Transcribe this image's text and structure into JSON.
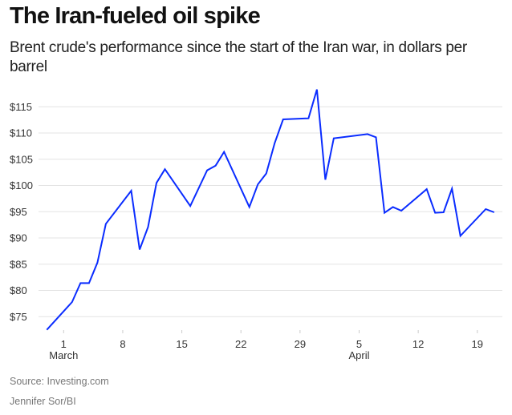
{
  "title": "The Iran-fueled oil spike",
  "subtitle": "Brent crude's performance since the start of the Iran war, in dollars per barrel",
  "source": "Source: Investing.com",
  "credit": "Jennifer Sor/BI",
  "line_color": "#0a2cff",
  "chart_data": {
    "type": "line",
    "title": "The Iran-fueled oil spike",
    "xlabel": "",
    "ylabel": "Dollars per barrel",
    "ylim": [
      72,
      119
    ],
    "yticks": [
      75,
      80,
      85,
      90,
      95,
      100,
      105,
      110,
      115
    ],
    "ytick_labels": [
      "$75",
      "$80",
      "$85",
      "$90",
      "$95",
      "$100",
      "$105",
      "$110",
      "$115"
    ],
    "xticks": [
      {
        "day": 1,
        "label": "1",
        "month": "March"
      },
      {
        "day": 8,
        "label": "8",
        "month": ""
      },
      {
        "day": 15,
        "label": "15",
        "month": ""
      },
      {
        "day": 22,
        "label": "22",
        "month": ""
      },
      {
        "day": 29,
        "label": "29",
        "month": ""
      },
      {
        "day": 36,
        "label": "5",
        "month": "April"
      },
      {
        "day": 43,
        "label": "12",
        "month": ""
      },
      {
        "day": 50,
        "label": "19",
        "month": ""
      }
    ],
    "grid": true,
    "series": [
      {
        "name": "Brent crude",
        "x": [
          "Feb 27",
          "Mar 2",
          "Mar 3",
          "Mar 4",
          "Mar 5",
          "Mar 6",
          "Mar 9",
          "Mar 10",
          "Mar 11",
          "Mar 12",
          "Mar 13",
          "Mar 16",
          "Mar 18",
          "Mar 19",
          "Mar 20",
          "Mar 23",
          "Mar 24",
          "Mar 25",
          "Mar 26",
          "Mar 27",
          "Mar 30",
          "Mar 31",
          "Apr 1",
          "Apr 2",
          "Apr 6",
          "Apr 7",
          "Apr 8",
          "Apr 9",
          "Apr 10",
          "Apr 13",
          "Apr 14",
          "Apr 15",
          "Apr 16",
          "Apr 17",
          "Apr 20",
          "Apr 21"
        ],
        "values": [
          72.5,
          77.8,
          81.4,
          81.4,
          85.3,
          92.7,
          99.0,
          87.8,
          92.1,
          100.5,
          103.1,
          96.1,
          102.9,
          103.8,
          106.4,
          95.9,
          100.2,
          102.3,
          108.1,
          112.6,
          112.8,
          118.3,
          101.1,
          109.0,
          109.8,
          109.2,
          94.8,
          95.9,
          95.2,
          99.3,
          94.8,
          94.9,
          99.4,
          90.4,
          95.5,
          94.9
        ]
      }
    ]
  }
}
